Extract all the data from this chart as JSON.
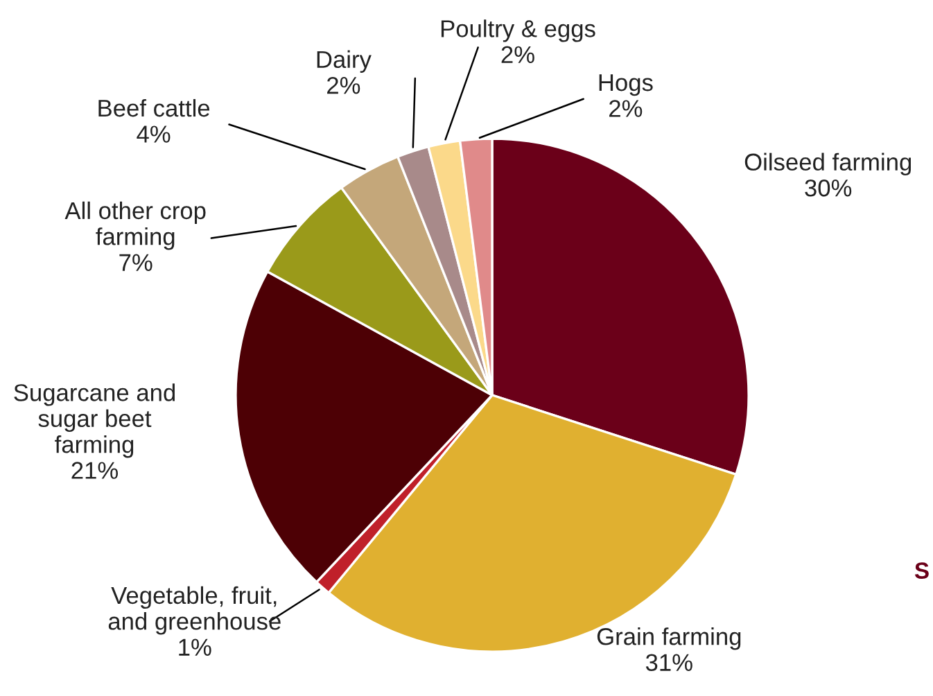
{
  "chart_data": {
    "type": "pie",
    "categories": [
      "Oilseed farming",
      "Grain farming",
      "Vegetable, fruit,\nand greenhouse",
      "Sugarcane and\nsugar beet\nfarming",
      "All other crop\nfarming",
      "Beef cattle",
      "Dairy",
      "Poultry & eggs",
      "Hogs"
    ],
    "values": [
      30,
      31,
      1,
      21,
      7,
      4,
      2,
      2,
      2
    ],
    "value_labels": [
      "30%",
      "31%",
      "1%",
      "21%",
      "7%",
      "4%",
      "2%",
      "2%",
      "2%"
    ],
    "colors": [
      "#6b0019",
      "#e0b030",
      "#c0202a",
      "#4d0005",
      "#9a9a1a",
      "#c4a77a",
      "#a88a8a",
      "#fbd98a",
      "#e08a8a"
    ],
    "annotations": [
      "S"
    ],
    "legend": false
  }
}
